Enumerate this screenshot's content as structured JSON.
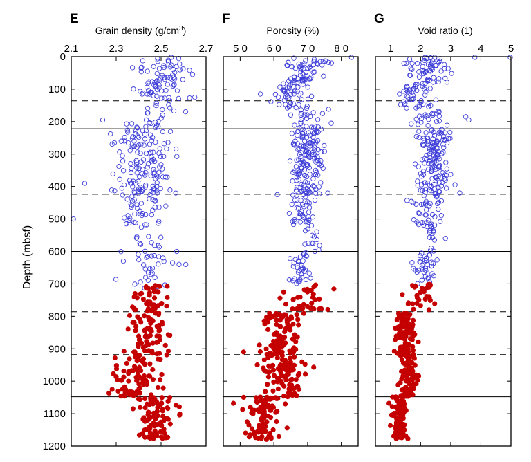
{
  "chart_data": {
    "type": "scatter",
    "y_axis": {
      "label": "Depth (mbsf)",
      "range": [
        0,
        1200
      ],
      "inverted": true,
      "ticks": [
        "0",
        "100",
        "200",
        "300",
        "400",
        "500",
        "600",
        "700",
        "800",
        "900",
        "1000",
        "1100",
        "1200"
      ]
    },
    "solid_boundaries": [
      222,
      600,
      1048
    ],
    "dashed_boundaries": [
      136,
      424,
      786,
      918
    ],
    "series_styles": [
      {
        "marker": "open-circle",
        "color": "#3a3ad8"
      },
      {
        "marker": "filled-circle",
        "color": "#c40000"
      }
    ],
    "panels": [
      {
        "letter": "E",
        "title": "Grain density (g/cm",
        "title_sup": "3",
        "title_suffix": ")",
        "xlim": [
          2.1,
          2.7
        ],
        "xticks": [
          "2.1",
          "2.3",
          "2.5",
          "2.7"
        ],
        "bands": [
          {
            "y0": 0,
            "y1": 130,
            "c": 2.5,
            "s": 0.055,
            "n": 75,
            "series": 0
          },
          {
            "y0": 130,
            "y1": 222,
            "c": 2.5,
            "s": 0.05,
            "n": 18,
            "series": 0
          },
          {
            "y0": 205,
            "y1": 260,
            "c": 2.4,
            "s": 0.06,
            "n": 28,
            "series": 0
          },
          {
            "y0": 260,
            "y1": 425,
            "c": 2.43,
            "s": 0.065,
            "n": 110,
            "series": 0
          },
          {
            "y0": 425,
            "y1": 520,
            "c": 2.42,
            "s": 0.06,
            "n": 40,
            "series": 0
          },
          {
            "y0": 520,
            "y1": 600,
            "c": 2.43,
            "s": 0.05,
            "n": 12,
            "series": 0
          },
          {
            "y0": 600,
            "y1": 715,
            "c": 2.45,
            "s": 0.06,
            "n": 30,
            "series": 0
          },
          {
            "y0": 705,
            "y1": 920,
            "c": 2.45,
            "s": 0.045,
            "n": 110,
            "series": 1
          },
          {
            "y0": 920,
            "y1": 1048,
            "c": 2.38,
            "s": 0.055,
            "n": 85,
            "series": 1
          },
          {
            "y0": 1048,
            "y1": 1180,
            "c": 2.47,
            "s": 0.045,
            "n": 90,
            "series": 1
          }
        ],
        "points": [
          {
            "y": 390,
            "x": 2.16,
            "series": 0
          },
          {
            "y": 500,
            "x": 2.11,
            "series": 0
          },
          {
            "y": 195,
            "x": 2.24,
            "series": 0
          },
          {
            "y": 55,
            "x": 2.64,
            "series": 0
          },
          {
            "y": 125,
            "x": 2.65,
            "series": 0
          },
          {
            "y": 600,
            "x": 2.57,
            "series": 0
          },
          {
            "y": 640,
            "x": 2.58,
            "series": 0
          }
        ]
      },
      {
        "letter": "F",
        "title": "Porosity (%)",
        "title_sup": "",
        "title_suffix": "",
        "xlim": [
          45,
          85
        ],
        "xticks": [
          "5 0",
          "6 0",
          "7 0",
          "8 0"
        ],
        "bands": [
          {
            "y0": 0,
            "y1": 80,
            "c": 70,
            "s": 3.2,
            "n": 55,
            "series": 0
          },
          {
            "y0": 80,
            "y1": 160,
            "c": 65,
            "s": 2.5,
            "n": 45,
            "series": 0
          },
          {
            "y0": 160,
            "y1": 222,
            "c": 70,
            "s": 2.5,
            "n": 22,
            "series": 0
          },
          {
            "y0": 222,
            "y1": 425,
            "c": 70,
            "s": 2.2,
            "n": 140,
            "series": 0
          },
          {
            "y0": 425,
            "y1": 520,
            "c": 69,
            "s": 2.2,
            "n": 40,
            "series": 0
          },
          {
            "y0": 520,
            "y1": 600,
            "c": 71,
            "s": 1.5,
            "n": 14,
            "series": 0
          },
          {
            "y0": 600,
            "y1": 700,
            "c": 68,
            "s": 2.0,
            "n": 35,
            "series": 0
          },
          {
            "y0": 700,
            "y1": 780,
            "c": 70,
            "s": 4.0,
            "n": 30,
            "series": 1
          },
          {
            "y0": 790,
            "y1": 920,
            "c": 62,
            "s": 3.0,
            "n": 100,
            "series": 1
          },
          {
            "y0": 920,
            "y1": 1048,
            "c": 63,
            "s": 3.0,
            "n": 90,
            "series": 1
          },
          {
            "y0": 1048,
            "y1": 1180,
            "c": 57,
            "s": 2.5,
            "n": 95,
            "series": 1
          }
        ],
        "points": [
          {
            "y": 0,
            "x": 83,
            "series": 0
          },
          {
            "y": 115,
            "x": 56,
            "series": 0
          },
          {
            "y": 425,
            "x": 61,
            "series": 0
          },
          {
            "y": 205,
            "x": 77,
            "series": 0
          },
          {
            "y": 420,
            "x": 76,
            "series": 0
          },
          {
            "y": 910,
            "x": 51,
            "series": 1
          },
          {
            "y": 1068,
            "x": 48,
            "series": 1
          }
        ]
      },
      {
        "letter": "G",
        "title": "Void ratio (1)",
        "title_sup": "",
        "title_suffix": "",
        "xlim": [
          0.5,
          5
        ],
        "xticks": [
          "1",
          "2",
          "3",
          "4",
          "5"
        ],
        "bands": [
          {
            "y0": 0,
            "y1": 80,
            "c": 2.3,
            "s": 0.35,
            "n": 55,
            "series": 0
          },
          {
            "y0": 80,
            "y1": 160,
            "c": 1.9,
            "s": 0.25,
            "n": 45,
            "series": 0
          },
          {
            "y0": 160,
            "y1": 222,
            "c": 2.4,
            "s": 0.3,
            "n": 22,
            "series": 0
          },
          {
            "y0": 222,
            "y1": 425,
            "c": 2.4,
            "s": 0.3,
            "n": 140,
            "series": 0
          },
          {
            "y0": 425,
            "y1": 520,
            "c": 2.2,
            "s": 0.25,
            "n": 40,
            "series": 0
          },
          {
            "y0": 520,
            "y1": 600,
            "c": 2.4,
            "s": 0.15,
            "n": 14,
            "series": 0
          },
          {
            "y0": 600,
            "y1": 700,
            "c": 2.1,
            "s": 0.2,
            "n": 35,
            "series": 0
          },
          {
            "y0": 700,
            "y1": 780,
            "c": 2.0,
            "s": 0.3,
            "n": 30,
            "series": 1
          },
          {
            "y0": 790,
            "y1": 920,
            "c": 1.5,
            "s": 0.15,
            "n": 100,
            "series": 1
          },
          {
            "y0": 920,
            "y1": 1048,
            "c": 1.6,
            "s": 0.15,
            "n": 90,
            "series": 1
          },
          {
            "y0": 1048,
            "y1": 1180,
            "c": 1.3,
            "s": 0.12,
            "n": 95,
            "series": 1
          }
        ],
        "points": [
          {
            "y": 0,
            "x": 3.8,
            "series": 0
          },
          {
            "y": 0,
            "x": 5.0,
            "series": 0
          },
          {
            "y": 115,
            "x": 1.3,
            "series": 0
          },
          {
            "y": 185,
            "x": 3.5,
            "series": 0
          },
          {
            "y": 195,
            "x": 3.6,
            "series": 0
          },
          {
            "y": 420,
            "x": 3.3,
            "series": 0
          },
          {
            "y": 1068,
            "x": 0.95,
            "series": 1
          }
        ]
      }
    ]
  }
}
